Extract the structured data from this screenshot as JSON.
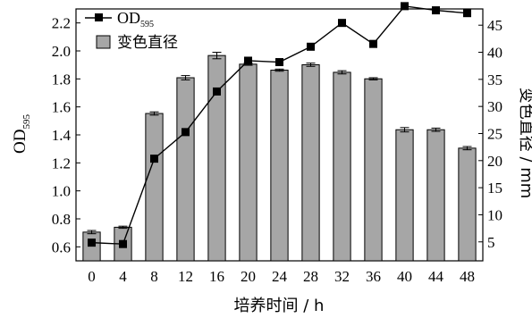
{
  "chart_data": {
    "type": "bar+line",
    "categories": [
      "0",
      "4",
      "8",
      "12",
      "16",
      "20",
      "24",
      "28",
      "32",
      "36",
      "40",
      "44",
      "48"
    ],
    "xlabel": "培养时间 / h",
    "ylabel_left": "OD",
    "ylabel_left_sub": "595",
    "ylabel_right": "变色直径 / mm",
    "ylim_left": [
      0.5,
      2.3
    ],
    "yticks_left": [
      "0.6",
      "0.8",
      "1.0",
      "1.2",
      "1.4",
      "1.6",
      "1.8",
      "2.0",
      "2.2"
    ],
    "ylim_right": [
      1.5,
      48
    ],
    "yticks_right": [
      "5",
      "10",
      "15",
      "20",
      "25",
      "30",
      "35",
      "40",
      "45"
    ],
    "legend_position": "top-left",
    "series": [
      {
        "name": "OD",
        "name_sub": "595",
        "kind": "line",
        "axis": "left",
        "marker": "square",
        "color": "#000000",
        "values": [
          0.63,
          0.62,
          1.23,
          1.42,
          1.71,
          1.93,
          1.92,
          2.03,
          2.2,
          2.05,
          2.32,
          2.29,
          2.27
        ]
      },
      {
        "name": "变色直径",
        "kind": "bar",
        "axis": "right",
        "color": "#a6a6a6",
        "values": [
          6.8,
          7.7,
          28.7,
          35.3,
          39.4,
          37.8,
          36.7,
          37.7,
          36.3,
          35.1,
          25.7,
          25.7,
          22.3
        ],
        "errors": [
          0.3,
          0.2,
          0.3,
          0.4,
          0.6,
          0.2,
          0.2,
          0.3,
          0.3,
          0.2,
          0.4,
          0.3,
          0.3
        ]
      }
    ]
  }
}
